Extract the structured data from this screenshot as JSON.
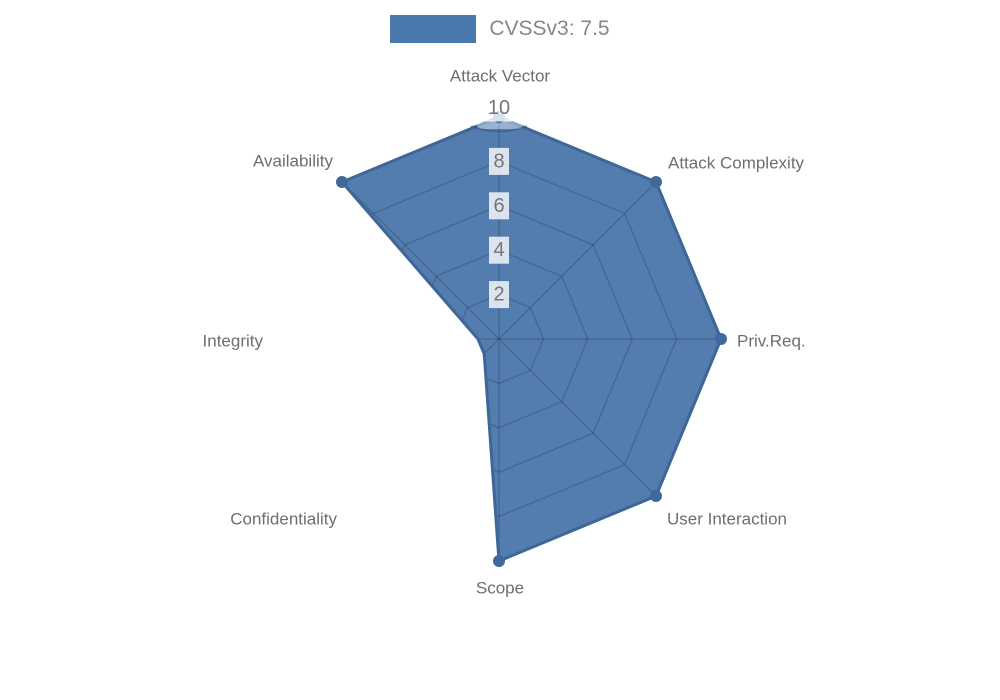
{
  "chart_data": {
    "type": "radar",
    "legend": {
      "label": "CVSSv3: 7.5",
      "position": "top"
    },
    "categories": [
      "Attack Vector",
      "Attack Complexity",
      "Priv.Req.",
      "User Interaction",
      "Scope",
      "Confidentiality",
      "Integrity",
      "Availability"
    ],
    "series": [
      {
        "name": "CVSSv3: 7.5",
        "values": [
          10,
          10,
          10,
          10,
          10,
          0,
          0,
          10
        ]
      }
    ],
    "rlim": [
      0,
      10
    ],
    "ticks": [
      2,
      4,
      6,
      8,
      10
    ],
    "grid": true,
    "grid_shape": "polygon",
    "colors": {
      "fill": "#4C79AB",
      "border": "#3E6697",
      "point": "#41689A",
      "grid_line": "rgba(0,0,0,0.16)",
      "axis_label": "#6E6E6E",
      "tick_label": "#757575",
      "tick_backdrop": "rgba(255,255,255,0.8)",
      "legend_label": "#878787"
    }
  }
}
